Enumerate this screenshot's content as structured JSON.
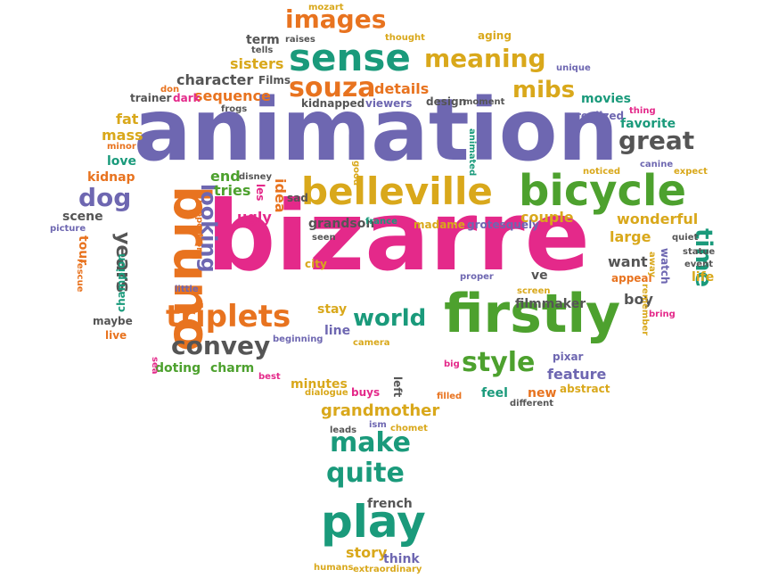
{
  "colors": {
    "purple": "#6e67b1",
    "pink": "#e4298a",
    "green": "#4da12e",
    "orange": "#e8731f",
    "teal": "#1a9a7b",
    "gold": "#d9a81b",
    "gray": "#555555"
  },
  "words": [
    {
      "id": "animation",
      "text": "animation",
      "color": "purple"
    },
    {
      "id": "bizarre",
      "text": "bizarre",
      "color": "pink"
    },
    {
      "id": "firstly",
      "text": "firstly",
      "color": "green"
    },
    {
      "id": "bicycle",
      "text": "bicycle",
      "color": "green"
    },
    {
      "id": "belleville",
      "text": "belleville",
      "color": "gold"
    },
    {
      "id": "sense",
      "text": "sense",
      "color": "teal"
    },
    {
      "id": "images",
      "text": "images",
      "color": "orange"
    },
    {
      "id": "meaning",
      "text": "meaning",
      "color": "gold"
    },
    {
      "id": "souza",
      "text": "souza",
      "color": "orange"
    },
    {
      "id": "mibs",
      "text": "mibs",
      "color": "gold"
    },
    {
      "id": "great",
      "text": "great",
      "color": "gray"
    },
    {
      "id": "bruno",
      "text": "bruno",
      "color": "orange"
    },
    {
      "id": "looking",
      "text": "looking",
      "color": "purple"
    },
    {
      "id": "triplets",
      "text": "triplets",
      "color": "orange"
    },
    {
      "id": "convey",
      "text": "convey",
      "color": "gray"
    },
    {
      "id": "world",
      "text": "world",
      "color": "teal"
    },
    {
      "id": "style",
      "text": "style",
      "color": "green"
    },
    {
      "id": "play",
      "text": "play",
      "color": "teal"
    },
    {
      "id": "make",
      "text": "make",
      "color": "teal"
    },
    {
      "id": "quite",
      "text": "quite",
      "color": "teal"
    },
    {
      "id": "time",
      "text": "time",
      "color": "teal"
    },
    {
      "id": "dog",
      "text": "dog",
      "color": "purple"
    },
    {
      "id": "years",
      "text": "years",
      "color": "gray"
    },
    {
      "id": "grandmother",
      "text": "grandmother",
      "color": "gold"
    },
    {
      "id": "wonderful",
      "text": "wonderful",
      "color": "gold"
    },
    {
      "id": "couple",
      "text": "couple",
      "color": "gold"
    },
    {
      "id": "character",
      "text": "character",
      "color": "gray"
    },
    {
      "id": "sisters",
      "text": "sisters",
      "color": "gold"
    },
    {
      "id": "sequence",
      "text": "sequence",
      "color": "orange"
    },
    {
      "id": "details",
      "text": "details",
      "color": "orange"
    },
    {
      "id": "movies",
      "text": "movies",
      "color": "teal"
    },
    {
      "id": "favorite",
      "text": "favorite",
      "color": "teal"
    },
    {
      "id": "grandson",
      "text": "grandson",
      "color": "gray"
    },
    {
      "id": "ugly",
      "text": "ugly",
      "color": "pink"
    },
    {
      "id": "large",
      "text": "large",
      "color": "gold"
    },
    {
      "id": "want",
      "text": "want",
      "color": "gray"
    },
    {
      "id": "feature",
      "text": "feature",
      "color": "purple"
    },
    {
      "id": "fat",
      "text": "fat",
      "color": "gold"
    },
    {
      "id": "mass",
      "text": "mass",
      "color": "gold"
    },
    {
      "id": "love",
      "text": "love",
      "color": "teal"
    },
    {
      "id": "kidnap",
      "text": "kidnap",
      "color": "orange"
    },
    {
      "id": "scene",
      "text": "scene",
      "color": "gray"
    },
    {
      "id": "champion",
      "text": "champion",
      "color": "teal"
    },
    {
      "id": "tour",
      "text": "tour",
      "color": "orange"
    },
    {
      "id": "doting",
      "text": "doting",
      "color": "green"
    },
    {
      "id": "charm",
      "text": "charm",
      "color": "green"
    },
    {
      "id": "stay",
      "text": "stay",
      "color": "gold"
    },
    {
      "id": "line",
      "text": "line",
      "color": "purple"
    },
    {
      "id": "minutes",
      "text": "minutes",
      "color": "gold"
    },
    {
      "id": "story",
      "text": "story",
      "color": "gold"
    },
    {
      "id": "think",
      "text": "think",
      "color": "purple"
    },
    {
      "id": "french",
      "text": "french",
      "color": "gray"
    },
    {
      "id": "boy",
      "text": "boy",
      "color": "gray"
    },
    {
      "id": "life",
      "text": "life",
      "color": "gold"
    },
    {
      "id": "appeal",
      "text": "appeal",
      "color": "orange"
    },
    {
      "id": "feel",
      "text": "feel",
      "color": "teal"
    },
    {
      "id": "new",
      "text": "new",
      "color": "orange"
    },
    {
      "id": "filmmaker",
      "text": "filmmaker",
      "color": "gray"
    },
    {
      "id": "ve",
      "text": "ve",
      "color": "gray"
    },
    {
      "id": "end",
      "text": "end",
      "color": "green"
    },
    {
      "id": "tries",
      "text": "tries",
      "color": "green"
    },
    {
      "id": "idea",
      "text": "idea",
      "color": "orange"
    },
    {
      "id": "term",
      "text": "term",
      "color": "gray"
    },
    {
      "id": "raises",
      "text": "raises",
      "color": "gray"
    },
    {
      "id": "thought",
      "text": "thought",
      "color": "gold"
    },
    {
      "id": "mozart",
      "text": "mozart",
      "color": "gold"
    },
    {
      "id": "aging",
      "text": "aging",
      "color": "gold"
    },
    {
      "id": "unique",
      "text": "unique",
      "color": "purple"
    },
    {
      "id": "thing",
      "text": "thing",
      "color": "pink"
    },
    {
      "id": "realized",
      "text": "realized",
      "color": "purple"
    },
    {
      "id": "noticed",
      "text": "noticed",
      "color": "gold"
    },
    {
      "id": "canine",
      "text": "canine",
      "color": "purple"
    },
    {
      "id": "expect",
      "text": "expect",
      "color": "gold"
    },
    {
      "id": "quiet",
      "text": "quiet",
      "color": "gray"
    },
    {
      "id": "statue",
      "text": "statue",
      "color": "gray"
    },
    {
      "id": "event",
      "text": "event",
      "color": "gray"
    },
    {
      "id": "watch",
      "text": "watch",
      "color": "purple"
    },
    {
      "id": "away",
      "text": "away",
      "color": "gold"
    },
    {
      "id": "remember",
      "text": "remember",
      "color": "gold"
    },
    {
      "id": "bring",
      "text": "bring",
      "color": "pink"
    },
    {
      "id": "pixar",
      "text": "pixar",
      "color": "purple"
    },
    {
      "id": "abstract",
      "text": "abstract",
      "color": "gold"
    },
    {
      "id": "different",
      "text": "different",
      "color": "gray"
    },
    {
      "id": "filled",
      "text": "filled",
      "color": "orange"
    },
    {
      "id": "chomet",
      "text": "chomet",
      "color": "gold"
    },
    {
      "id": "ism",
      "text": "ism",
      "color": "purple"
    },
    {
      "id": "leads",
      "text": "leads",
      "color": "gray"
    },
    {
      "id": "buys",
      "text": "buys",
      "color": "pink"
    },
    {
      "id": "left",
      "text": "left",
      "color": "gray"
    },
    {
      "id": "dialogue",
      "text": "dialogue",
      "color": "gold"
    },
    {
      "id": "best",
      "text": "best",
      "color": "pink"
    },
    {
      "id": "big",
      "text": "big",
      "color": "pink"
    },
    {
      "id": "camera",
      "text": "camera",
      "color": "gold"
    },
    {
      "id": "beginning",
      "text": "beginning",
      "color": "purple"
    },
    {
      "id": "screen",
      "text": "screen",
      "color": "gold"
    },
    {
      "id": "proper",
      "text": "proper",
      "color": "purple"
    },
    {
      "id": "city",
      "text": "city",
      "color": "gold"
    },
    {
      "id": "seen",
      "text": "seen",
      "color": "gray"
    },
    {
      "id": "france",
      "text": "france",
      "color": "teal"
    },
    {
      "id": "madame",
      "text": "madame",
      "color": "gold"
    },
    {
      "id": "grotesquely",
      "text": "grotesquely",
      "color": "purple"
    },
    {
      "id": "sad",
      "text": "sad",
      "color": "gray"
    },
    {
      "id": "les",
      "text": "les",
      "color": "pink"
    },
    {
      "id": "disney",
      "text": "disney",
      "color": "gray"
    },
    {
      "id": "good",
      "text": "good",
      "color": "gold"
    },
    {
      "id": "animated",
      "text": "animated",
      "color": "teal"
    },
    {
      "id": "kidnapped",
      "text": "kidnapped",
      "color": "gray"
    },
    {
      "id": "viewers",
      "text": "viewers",
      "color": "purple"
    },
    {
      "id": "design",
      "text": "design",
      "color": "gray"
    },
    {
      "id": "moment",
      "text": "moment",
      "color": "gray"
    },
    {
      "id": "films",
      "text": "Films",
      "color": "gray"
    },
    {
      "id": "tells",
      "text": "tells",
      "color": "gray"
    },
    {
      "id": "don",
      "text": "don",
      "color": "orange"
    },
    {
      "id": "dark",
      "text": "dark",
      "color": "pink"
    },
    {
      "id": "trainer",
      "text": "trainer",
      "color": "gray"
    },
    {
      "id": "frogs",
      "text": "frogs",
      "color": "gray"
    },
    {
      "id": "minor",
      "text": "minor",
      "color": "orange"
    },
    {
      "id": "picture",
      "text": "picture",
      "color": "purple"
    },
    {
      "id": "rescue",
      "text": "rescue",
      "color": "orange"
    },
    {
      "id": "proportions",
      "text": "proportions",
      "color": "orange"
    },
    {
      "id": "little",
      "text": "little",
      "color": "purple"
    },
    {
      "id": "maybe",
      "text": "maybe",
      "color": "gray"
    },
    {
      "id": "live",
      "text": "live",
      "color": "orange"
    },
    {
      "id": "sea",
      "text": "sea",
      "color": "pink"
    },
    {
      "id": "humans",
      "text": "humans",
      "color": "gold"
    },
    {
      "id": "extraordinary",
      "text": "extraordinary",
      "color": "gold"
    }
  ]
}
